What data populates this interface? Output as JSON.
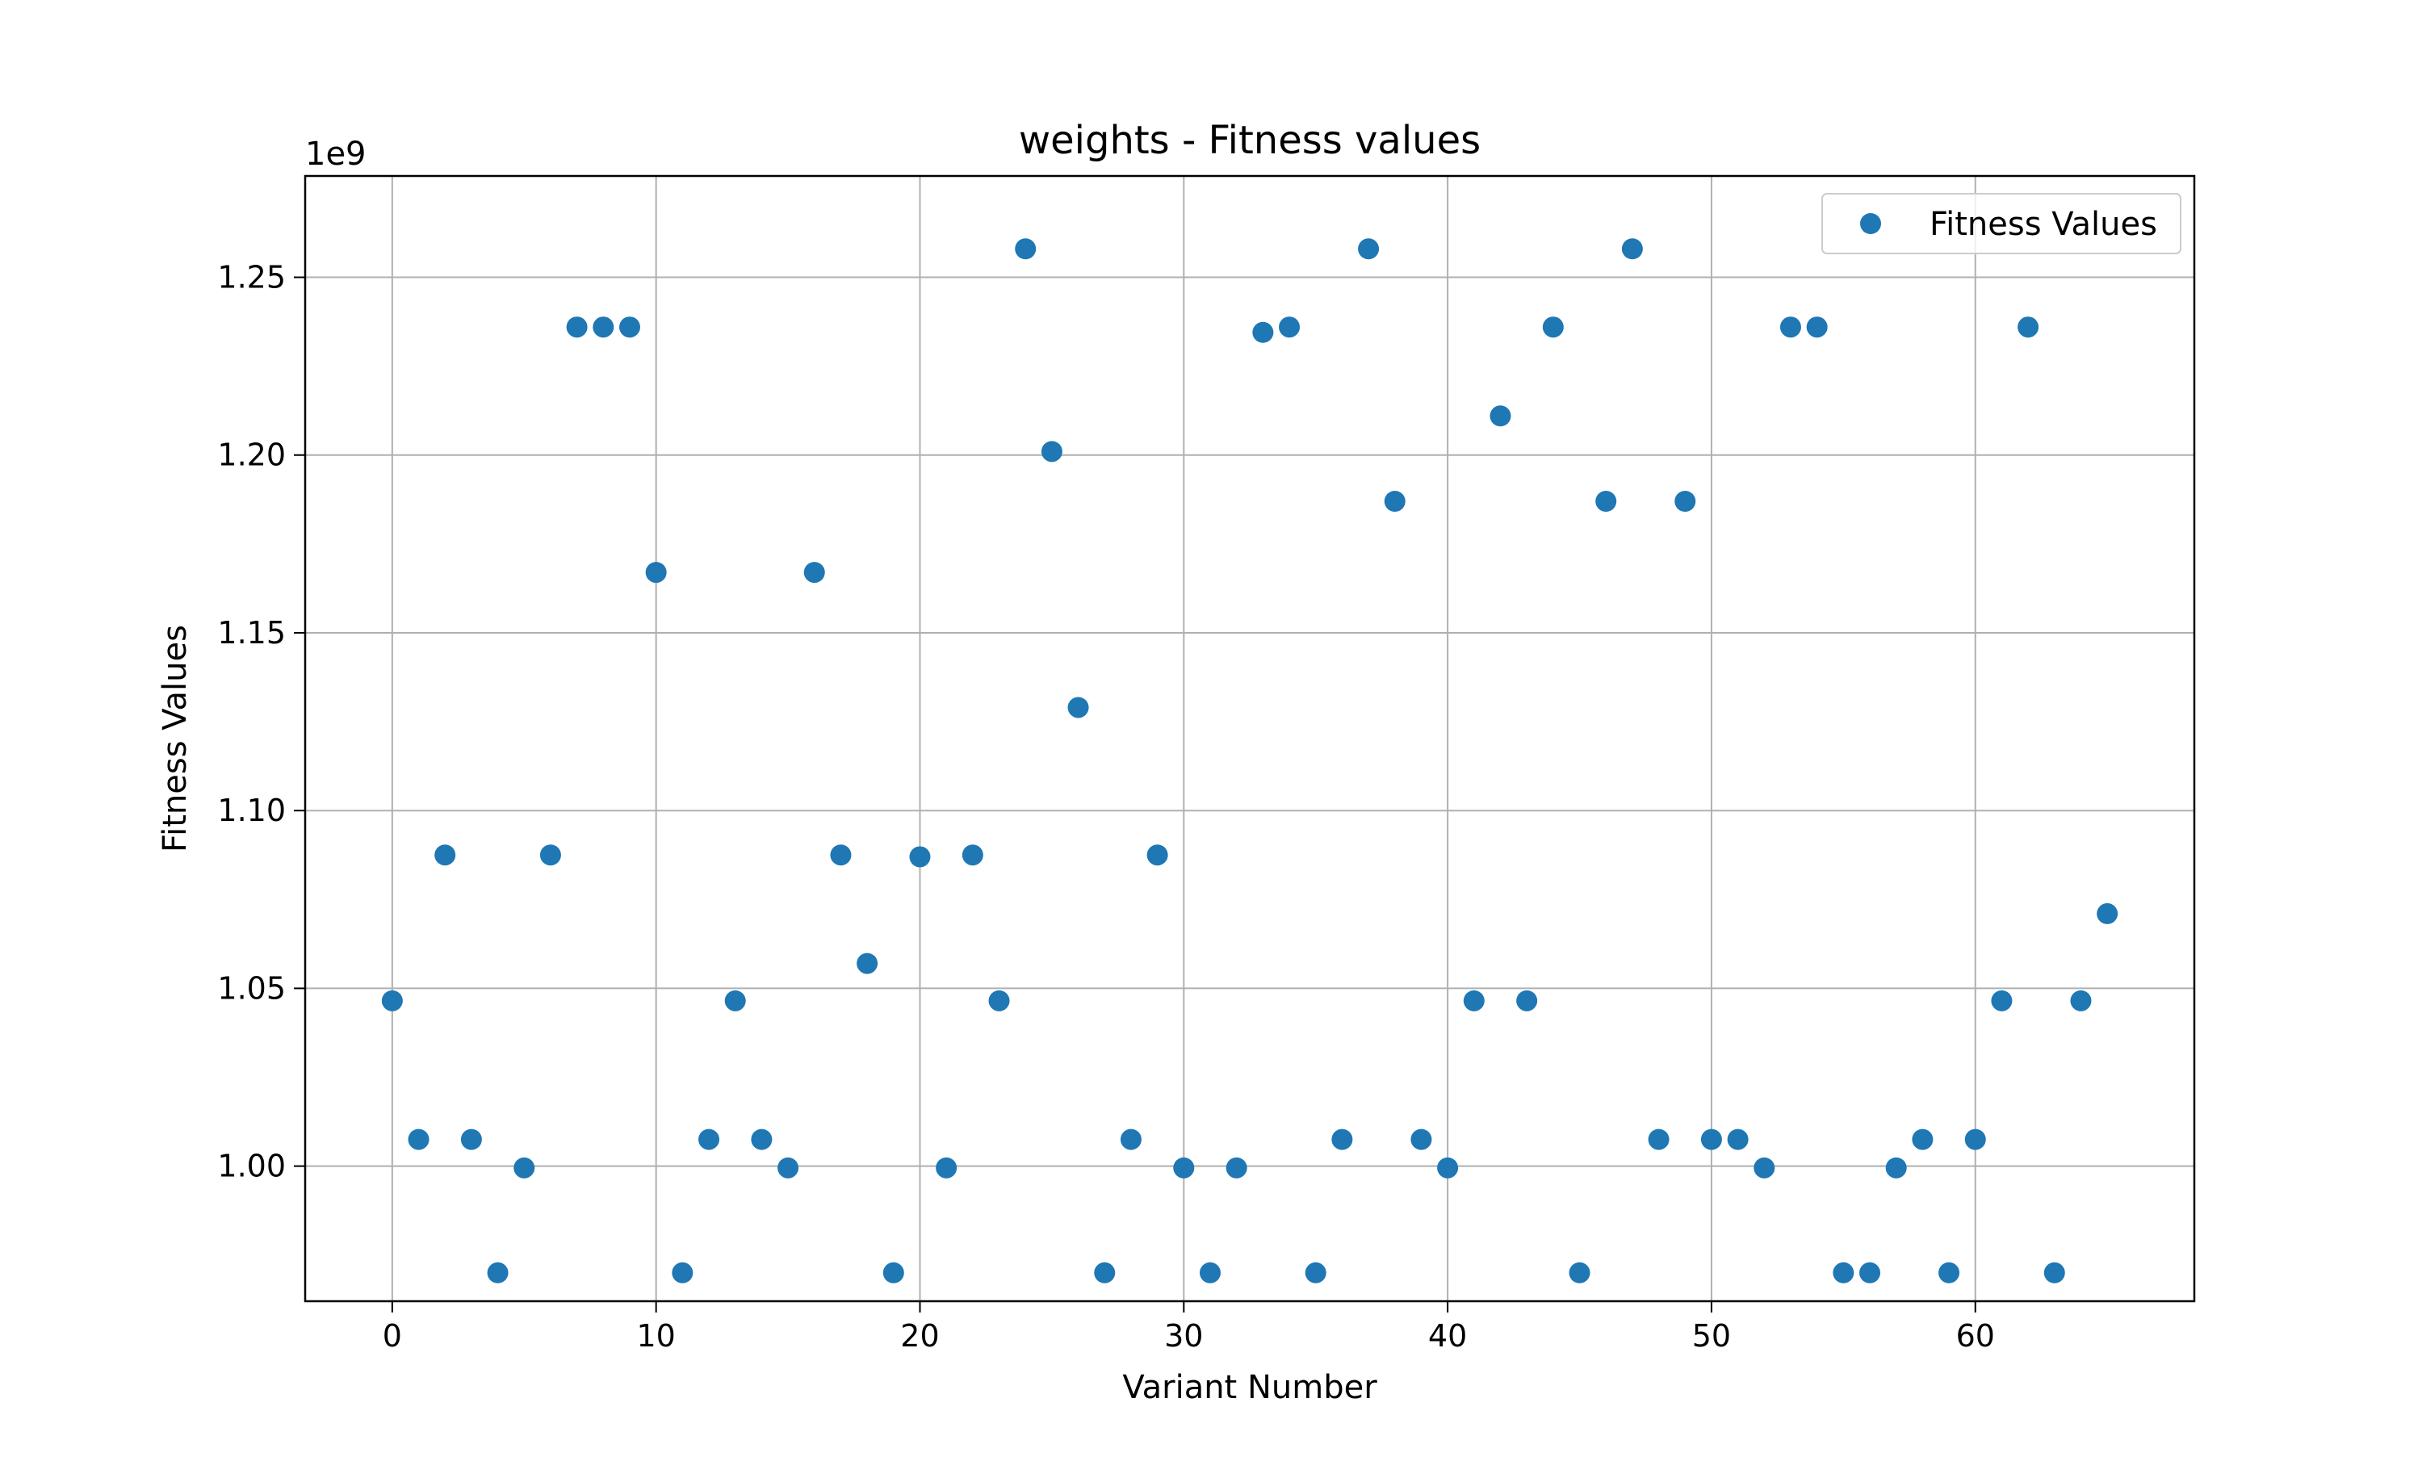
{
  "chart_data": {
    "type": "scatter",
    "title": "weights - Fitness values",
    "xlabel": "Variant Number",
    "ylabel": "Fitness Values",
    "y_offset_label": "1e9",
    "xlim": [
      -3.3,
      68.3
    ],
    "ylim": [
      962000000,
      1278500000
    ],
    "x_ticks": [
      0,
      10,
      20,
      30,
      40,
      50,
      60
    ],
    "x_tick_labels": [
      "0",
      "10",
      "20",
      "30",
      "40",
      "50",
      "60"
    ],
    "y_ticks": [
      1000000000,
      1050000000,
      1100000000,
      1150000000,
      1200000000,
      1250000000
    ],
    "y_tick_labels": [
      "1.00",
      "1.05",
      "1.10",
      "1.15",
      "1.20",
      "1.25"
    ],
    "grid": true,
    "legend_position": "top-right",
    "series": [
      {
        "name": "Fitness Values",
        "color": "#1f77b4",
        "x": [
          0,
          1,
          2,
          3,
          4,
          5,
          6,
          7,
          8,
          9,
          10,
          11,
          12,
          13,
          14,
          15,
          16,
          17,
          18,
          19,
          20,
          21,
          22,
          23,
          24,
          25,
          26,
          27,
          28,
          29,
          30,
          31,
          32,
          33,
          34,
          35,
          36,
          37,
          38,
          39,
          40,
          41,
          42,
          43,
          44,
          45,
          46,
          47,
          48,
          49,
          50,
          51,
          52,
          53,
          54,
          55,
          56,
          57,
          58,
          59,
          60,
          61,
          62,
          63,
          64,
          65
        ],
        "y": [
          1046500000,
          1007500000,
          1087500000,
          1007500000,
          970000000,
          999500000,
          1087500000,
          1236000000,
          1236000000,
          1236000000,
          1167000000,
          970000000,
          1007500000,
          1046500000,
          1007500000,
          999500000,
          1167000000,
          1087500000,
          1057000000,
          970000000,
          1087000000,
          999500000,
          1087500000,
          1046500000,
          1258000000,
          1201000000,
          1129000000,
          970000000,
          1007500000,
          1087500000,
          999500000,
          970000000,
          999500000,
          1234500000,
          1236000000,
          970000000,
          1007500000,
          1258000000,
          1187000000,
          1007500000,
          999500000,
          1046500000,
          1211000000,
          1046500000,
          1236000000,
          970000000,
          1187000000,
          1258000000,
          1007500000,
          1187000000,
          1007500000,
          1007500000,
          999500000,
          1236000000,
          1236000000,
          970000000,
          970000000,
          999500000,
          1007500000,
          970000000,
          1007500000,
          1046500000,
          1236000000,
          970000000,
          1046500000,
          1071000000
        ]
      }
    ]
  }
}
